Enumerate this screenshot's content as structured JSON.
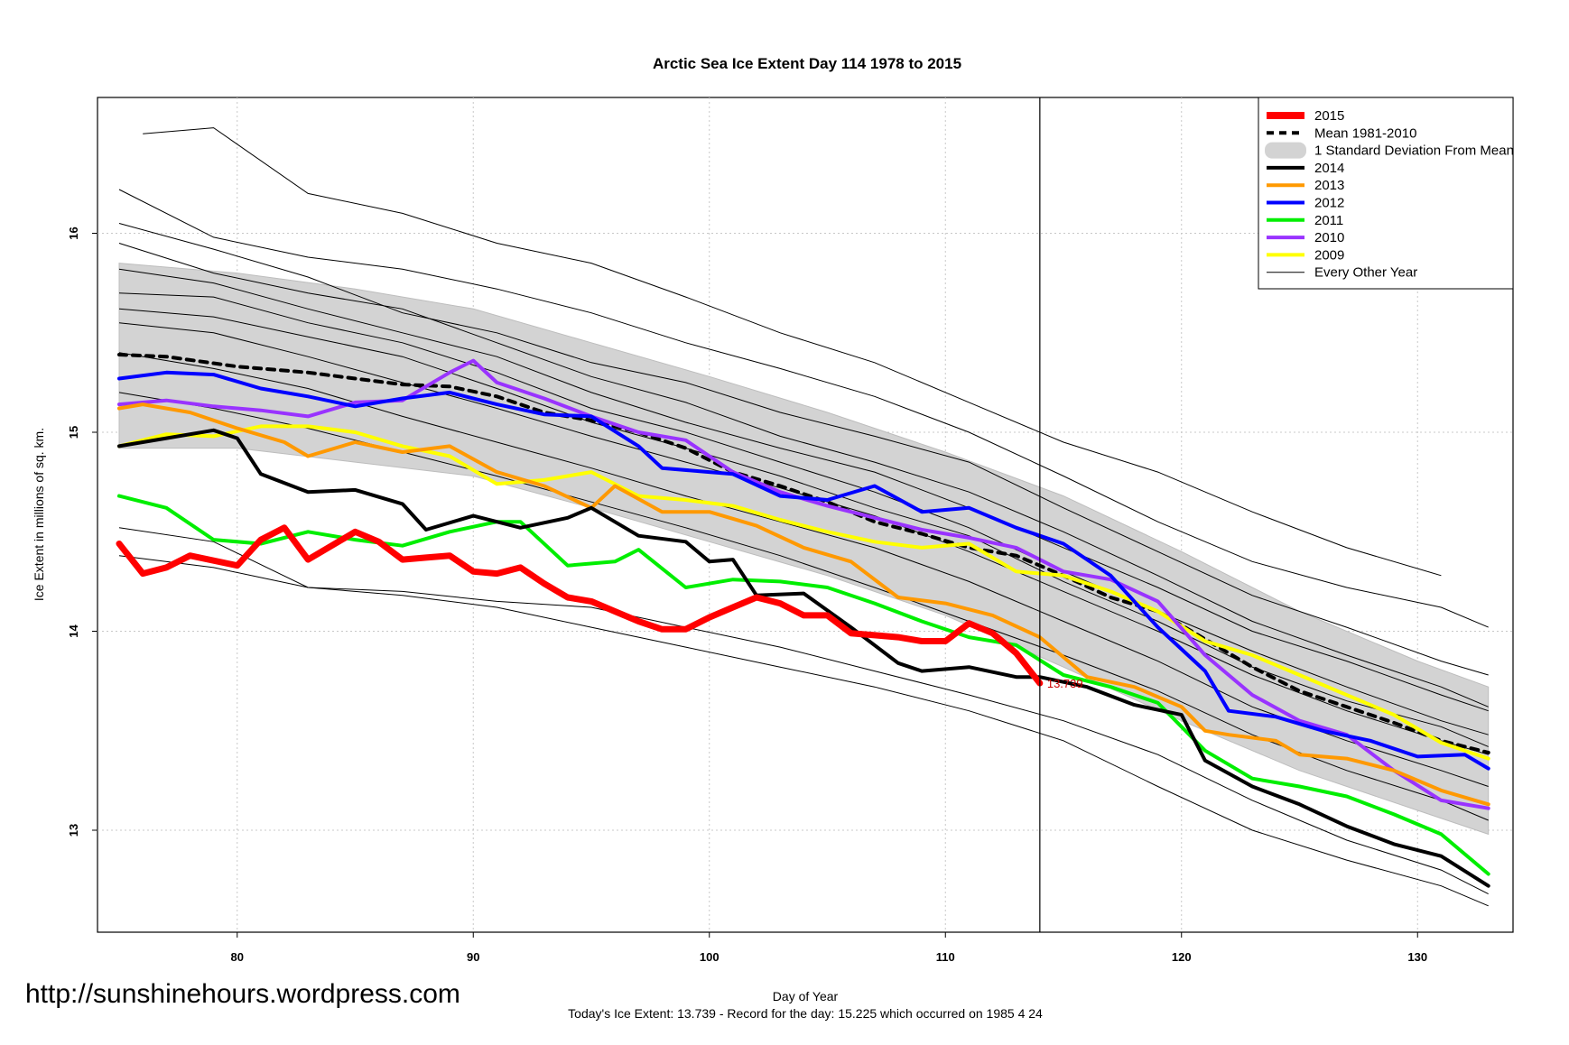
{
  "title": "Arctic Sea Ice Extent Day 114 1978 to 2015",
  "url": "http://sunshinehours.wordpress.com",
  "footer": "Today's Ice Extent: 13.739  - Record for the day: 15.225 which occurred on 1985 4 24",
  "chart_data": {
    "type": "line",
    "title": "Arctic Sea Ice Extent Day 114 1978 to 2015",
    "xlabel": "Day of Year",
    "ylabel": "Ice Extent in millions of sq. km.",
    "xlim": [
      75,
      133
    ],
    "ylim": [
      12.5,
      16.7
    ],
    "xticks": [
      80,
      90,
      100,
      110,
      120,
      130
    ],
    "yticks": [
      13,
      14,
      15,
      16
    ],
    "grid": true,
    "legend_position": "top-right",
    "current_day": 114,
    "current_value_label": "13.739",
    "colors": {
      "2015": "#ff0000",
      "mean": "#000000",
      "sd_band": "#d3d3d3",
      "2014": "#000000",
      "2013": "#ff9900",
      "2012": "#0000ff",
      "2011": "#00ee00",
      "2010": "#9933ff",
      "2009": "#ffff00",
      "other": "#000000"
    },
    "legend": [
      "2015",
      "Mean 1981-2010",
      "1 Standard Deviation From Mean",
      "2014",
      "2013",
      "2012",
      "2011",
      "2010",
      "2009",
      "Every Other Year"
    ],
    "sd_band": {
      "x": [
        75,
        80,
        85,
        90,
        95,
        100,
        105,
        110,
        115,
        120,
        125,
        130,
        133
      ],
      "upper": [
        15.85,
        15.8,
        15.72,
        15.62,
        15.45,
        15.28,
        15.1,
        14.9,
        14.68,
        14.4,
        14.1,
        13.85,
        13.72
      ],
      "lower": [
        14.92,
        14.92,
        14.85,
        14.78,
        14.62,
        14.45,
        14.28,
        14.08,
        13.82,
        13.55,
        13.3,
        13.1,
        12.98
      ]
    },
    "series": [
      {
        "name": "Mean 1981-2010",
        "style": "dashed",
        "x": [
          75,
          77,
          80,
          83,
          85,
          87,
          89,
          91,
          93,
          95,
          97,
          99,
          101,
          103,
          105,
          107,
          109,
          111,
          113,
          115,
          117,
          119,
          121,
          123,
          125,
          127,
          129,
          131,
          133
        ],
        "values": [
          15.39,
          15.38,
          15.33,
          15.3,
          15.27,
          15.24,
          15.23,
          15.18,
          15.1,
          15.06,
          15.0,
          14.92,
          14.8,
          14.73,
          14.65,
          14.55,
          14.49,
          14.42,
          14.38,
          14.28,
          14.17,
          14.1,
          13.96,
          13.82,
          13.7,
          13.62,
          13.54,
          13.45,
          13.39
        ]
      },
      {
        "name": "2009",
        "x": [
          75,
          77,
          79,
          81,
          83,
          85,
          87,
          89,
          91,
          93,
          95,
          97,
          99,
          101,
          103,
          105,
          107,
          109,
          111,
          113,
          115,
          117,
          119,
          121,
          123,
          125,
          127,
          129,
          131,
          133
        ],
        "values": [
          14.93,
          14.99,
          14.98,
          15.03,
          15.03,
          15.0,
          14.93,
          14.88,
          14.74,
          14.76,
          14.8,
          14.68,
          14.66,
          14.63,
          14.56,
          14.5,
          14.45,
          14.42,
          14.44,
          14.3,
          14.28,
          14.2,
          14.1,
          13.95,
          13.88,
          13.78,
          13.68,
          13.58,
          13.44,
          13.36
        ]
      },
      {
        "name": "2010",
        "x": [
          75,
          77,
          79,
          81,
          83,
          85,
          87,
          89,
          90,
          91,
          93,
          95,
          97,
          99,
          101,
          103,
          105,
          107,
          109,
          111,
          113,
          115,
          117,
          119,
          121,
          123,
          125,
          127,
          129,
          131,
          133
        ],
        "values": [
          15.14,
          15.16,
          15.13,
          15.11,
          15.08,
          15.15,
          15.16,
          15.3,
          15.36,
          15.25,
          15.17,
          15.08,
          15.0,
          14.96,
          14.8,
          14.7,
          14.63,
          14.57,
          14.51,
          14.47,
          14.42,
          14.3,
          14.26,
          14.15,
          13.88,
          13.68,
          13.55,
          13.48,
          13.3,
          13.15,
          13.11
        ]
      },
      {
        "name": "2011",
        "x": [
          75,
          77,
          79,
          81,
          83,
          85,
          87,
          89,
          91,
          92,
          94,
          96,
          97,
          99,
          101,
          103,
          105,
          107,
          109,
          111,
          113,
          115,
          117,
          119,
          121,
          123,
          125,
          127,
          129,
          131,
          133
        ],
        "values": [
          14.68,
          14.62,
          14.46,
          14.44,
          14.5,
          14.46,
          14.43,
          14.5,
          14.55,
          14.55,
          14.33,
          14.35,
          14.41,
          14.22,
          14.26,
          14.25,
          14.22,
          14.14,
          14.05,
          13.97,
          13.93,
          13.78,
          13.72,
          13.64,
          13.4,
          13.26,
          13.22,
          13.17,
          13.08,
          12.98,
          12.78
        ]
      },
      {
        "name": "2012",
        "x": [
          75,
          77,
          79,
          81,
          83,
          85,
          87,
          89,
          91,
          93,
          95,
          97,
          98,
          100,
          101,
          103,
          105,
          107,
          109,
          111,
          113,
          115,
          117,
          119,
          121,
          122,
          124,
          126,
          128,
          130,
          132,
          133
        ],
        "values": [
          15.27,
          15.3,
          15.29,
          15.22,
          15.18,
          15.13,
          15.17,
          15.2,
          15.14,
          15.09,
          15.08,
          14.93,
          14.82,
          14.8,
          14.79,
          14.68,
          14.66,
          14.73,
          14.6,
          14.62,
          14.52,
          14.44,
          14.28,
          14.02,
          13.8,
          13.6,
          13.57,
          13.5,
          13.45,
          13.37,
          13.38,
          13.31
        ]
      },
      {
        "name": "2013",
        "x": [
          75,
          76,
          78,
          80,
          82,
          83,
          85,
          87,
          89,
          91,
          93,
          95,
          96,
          98,
          100,
          102,
          104,
          106,
          108,
          110,
          112,
          114,
          116,
          118,
          120,
          121,
          122,
          124,
          125,
          127,
          129,
          131,
          133
        ],
        "values": [
          15.12,
          15.14,
          15.1,
          15.02,
          14.95,
          14.88,
          14.95,
          14.9,
          14.93,
          14.8,
          14.73,
          14.62,
          14.73,
          14.6,
          14.6,
          14.53,
          14.42,
          14.35,
          14.17,
          14.14,
          14.08,
          13.97,
          13.77,
          13.72,
          13.62,
          13.5,
          13.48,
          13.45,
          13.38,
          13.36,
          13.3,
          13.2,
          13.13
        ]
      },
      {
        "name": "2014",
        "x": [
          75,
          77,
          79,
          80,
          81,
          83,
          85,
          87,
          88,
          90,
          92,
          94,
          95,
          97,
          99,
          100,
          101,
          102,
          104,
          106,
          108,
          109,
          111,
          113,
          114,
          116,
          118,
          120,
          121,
          123,
          125,
          127,
          129,
          131,
          133
        ],
        "values": [
          14.93,
          14.97,
          15.01,
          14.97,
          14.79,
          14.7,
          14.71,
          14.64,
          14.51,
          14.58,
          14.52,
          14.57,
          14.62,
          14.48,
          14.45,
          14.35,
          14.36,
          14.18,
          14.19,
          14.02,
          13.84,
          13.8,
          13.82,
          13.77,
          13.77,
          13.72,
          13.63,
          13.58,
          13.35,
          13.22,
          13.13,
          13.02,
          12.93,
          12.87,
          12.72
        ]
      },
      {
        "name": "2015",
        "x": [
          75,
          76,
          77,
          78,
          80,
          81,
          82,
          83,
          85,
          86,
          87,
          88,
          89,
          90,
          91,
          92,
          93,
          94,
          95,
          96,
          97,
          98,
          99,
          100,
          101,
          102,
          103,
          104,
          105,
          106,
          107,
          108,
          109,
          110,
          111,
          112,
          113,
          114
        ],
        "values": [
          14.44,
          14.29,
          14.32,
          14.38,
          14.33,
          14.46,
          14.52,
          14.36,
          14.5,
          14.45,
          14.36,
          14.37,
          14.38,
          14.3,
          14.29,
          14.32,
          14.24,
          14.17,
          14.15,
          14.1,
          14.05,
          14.01,
          14.01,
          14.07,
          14.12,
          14.17,
          14.14,
          14.08,
          14.08,
          13.99,
          13.98,
          13.97,
          13.95,
          13.95,
          14.04,
          13.99,
          13.89,
          13.739
        ]
      }
    ],
    "every_other_year": [
      {
        "x": [
          75,
          79,
          83,
          87,
          91,
          95,
          99,
          103,
          107,
          111,
          115,
          119,
          123,
          127,
          131,
          133
        ],
        "values": [
          16.22,
          15.98,
          15.88,
          15.82,
          15.72,
          15.6,
          15.45,
          15.32,
          15.18,
          15.0,
          14.78,
          14.55,
          14.35,
          14.22,
          14.12,
          14.02
        ]
      },
      {
        "x": [
          76,
          79,
          83,
          87,
          91,
          95,
          99,
          103,
          107,
          111,
          115,
          119,
          123,
          127,
          131
        ],
        "values": [
          16.5,
          16.53,
          16.2,
          16.1,
          15.95,
          15.85,
          15.68,
          15.5,
          15.35,
          15.15,
          14.95,
          14.8,
          14.6,
          14.42,
          14.28
        ]
      },
      {
        "x": [
          75,
          79,
          83,
          87,
          91,
          95,
          99,
          103,
          107,
          111,
          115,
          119,
          123,
          127,
          131,
          133
        ],
        "values": [
          16.05,
          15.92,
          15.78,
          15.6,
          15.5,
          15.35,
          15.25,
          15.1,
          14.98,
          14.85,
          14.62,
          14.4,
          14.18,
          14.02,
          13.85,
          13.78
        ]
      },
      {
        "x": [
          75,
          79,
          83,
          87,
          91,
          95,
          99,
          103,
          107,
          111,
          115,
          119,
          123,
          127,
          131,
          133
        ],
        "values": [
          15.95,
          15.8,
          15.7,
          15.62,
          15.45,
          15.28,
          15.15,
          14.98,
          14.85,
          14.7,
          14.5,
          14.28,
          14.05,
          13.88,
          13.72,
          13.62
        ]
      },
      {
        "x": [
          75,
          79,
          83,
          87,
          91,
          95,
          99,
          103,
          107,
          111,
          115,
          119,
          123,
          127,
          131,
          133
        ],
        "values": [
          15.7,
          15.68,
          15.55,
          15.45,
          15.3,
          15.12,
          15.0,
          14.85,
          14.7,
          14.52,
          14.3,
          14.1,
          13.9,
          13.72,
          13.55,
          13.48
        ]
      },
      {
        "x": [
          75,
          79,
          83,
          87,
          91,
          95,
          99,
          103,
          107,
          111,
          115,
          119,
          123,
          127,
          131,
          133
        ],
        "values": [
          15.55,
          15.5,
          15.38,
          15.25,
          15.12,
          14.98,
          14.85,
          14.72,
          14.58,
          14.4,
          14.2,
          14.0,
          13.78,
          13.6,
          13.45,
          13.38
        ]
      },
      {
        "x": [
          75,
          79,
          83,
          87,
          91,
          95,
          99,
          103,
          107,
          111,
          115,
          119,
          123,
          127,
          131,
          133
        ],
        "values": [
          15.4,
          15.32,
          15.22,
          15.08,
          14.95,
          14.82,
          14.68,
          14.55,
          14.42,
          14.25,
          14.05,
          13.85,
          13.62,
          13.45,
          13.3,
          13.22
        ]
      },
      {
        "x": [
          75,
          79,
          83,
          87,
          91,
          95,
          99,
          103,
          107,
          111,
          115,
          119,
          123,
          127,
          131,
          133
        ],
        "values": [
          15.2,
          15.12,
          15.02,
          14.9,
          14.78,
          14.65,
          14.52,
          14.38,
          14.22,
          14.05,
          13.88,
          13.7,
          13.48,
          13.3,
          13.15,
          13.05
        ]
      },
      {
        "x": [
          75,
          79,
          83,
          87,
          91,
          95,
          99,
          103,
          107,
          111,
          115,
          119,
          123,
          127,
          131,
          133
        ],
        "values": [
          14.52,
          14.45,
          14.22,
          14.2,
          14.15,
          14.12,
          14.02,
          13.92,
          13.8,
          13.68,
          13.55,
          13.38,
          13.15,
          12.95,
          12.8,
          12.68
        ]
      },
      {
        "x": [
          75,
          79,
          83,
          87,
          91,
          95,
          99,
          103,
          107,
          111,
          115,
          119,
          123,
          127,
          131,
          133
        ],
        "values": [
          14.38,
          14.32,
          14.22,
          14.18,
          14.12,
          14.02,
          13.92,
          13.82,
          13.72,
          13.6,
          13.45,
          13.22,
          13.0,
          12.85,
          12.72,
          12.62
        ]
      },
      {
        "x": [
          75,
          79,
          83,
          87,
          91,
          95,
          99,
          103,
          107,
          111,
          115,
          119,
          123,
          127,
          131,
          133
        ],
        "values": [
          15.82,
          15.75,
          15.62,
          15.5,
          15.38,
          15.2,
          15.05,
          14.92,
          14.8,
          14.62,
          14.42,
          14.22,
          14.0,
          13.85,
          13.68,
          13.6
        ]
      },
      {
        "x": [
          75,
          79,
          83,
          87,
          91,
          95,
          99,
          103,
          107,
          111,
          115,
          119,
          123,
          127,
          131,
          133
        ],
        "values": [
          15.62,
          15.58,
          15.48,
          15.38,
          15.22,
          15.05,
          14.92,
          14.78,
          14.62,
          14.48,
          14.25,
          14.05,
          13.82,
          13.65,
          13.52,
          13.42
        ]
      }
    ]
  }
}
